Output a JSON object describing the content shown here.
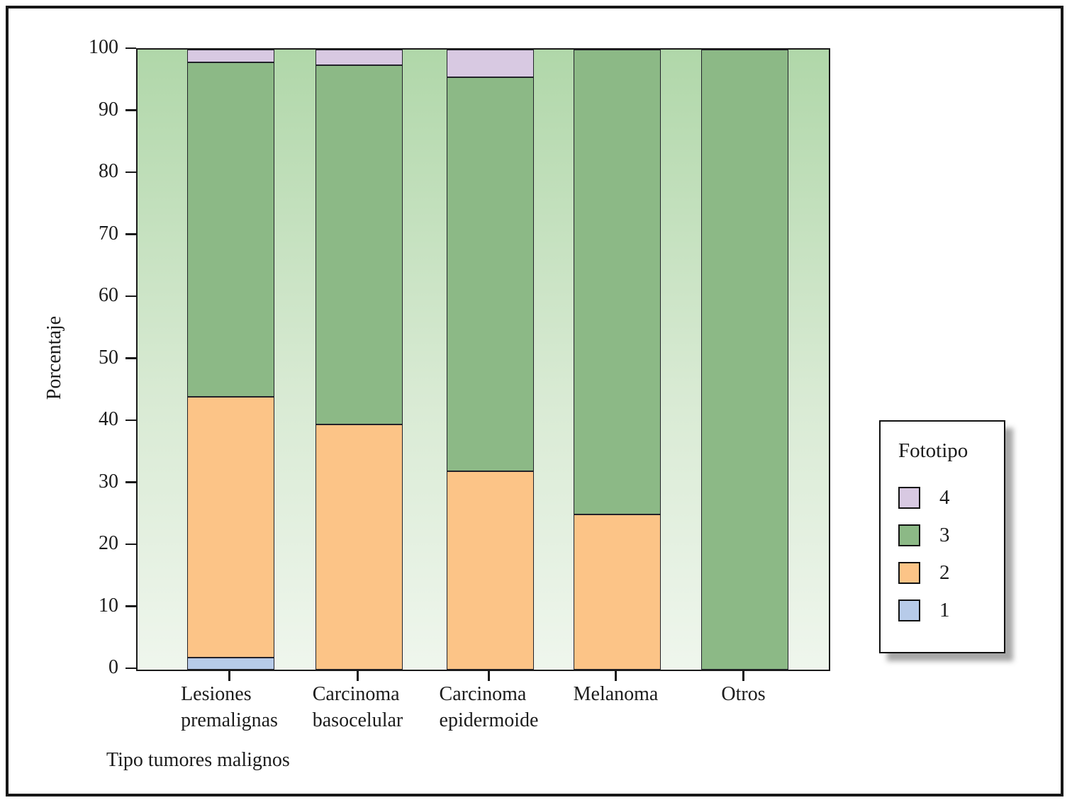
{
  "chart_data": {
    "type": "bar",
    "variant": "stacked-percent",
    "title": "",
    "xlabel": "Tipo tumores malignos",
    "ylabel": "Porcentaje",
    "ylim": [
      0,
      100
    ],
    "yticks": [
      0,
      10,
      20,
      30,
      40,
      50,
      60,
      70,
      80,
      90,
      100
    ],
    "grid": "off",
    "categories": [
      "Lesiones premalignas",
      "Carcinoma basocelular",
      "Carcinoma epidermoide",
      "Melanoma",
      "Otros"
    ],
    "category_label_lines": [
      [
        "Lesiones",
        "premalignas"
      ],
      [
        "Carcinoma",
        "basocelular"
      ],
      [
        "Carcinoma",
        "epidermoide"
      ],
      [
        "Melanoma"
      ],
      [
        "Otros"
      ]
    ],
    "series": [
      {
        "name": "1",
        "color": "#b7cbe9",
        "values": [
          2,
          0,
          0,
          0,
          0
        ]
      },
      {
        "name": "2",
        "color": "#fcc487",
        "values": [
          42,
          39.5,
          32,
          25,
          0
        ]
      },
      {
        "name": "3",
        "color": "#8cb986",
        "values": [
          54,
          58,
          63.5,
          75,
          100
        ]
      },
      {
        "name": "4",
        "color": "#d8c9e2",
        "values": [
          2,
          2.5,
          4.5,
          0,
          0
        ]
      }
    ],
    "legend": {
      "title": "Fototipo",
      "position": "right",
      "items": [
        {
          "label": "4",
          "color": "#d8c9e2"
        },
        {
          "label": "3",
          "color": "#8cb986"
        },
        {
          "label": "2",
          "color": "#fcc487"
        },
        {
          "label": "1",
          "color": "#b7cbe9"
        }
      ]
    },
    "colors": {
      "plot_bg_top": "#b0d7a9",
      "plot_bg_bottom": "#eff6ed",
      "axis_line": "#1a1a1a",
      "segment_outline": "#22222a",
      "figure_border": "#181818",
      "text": "#1c1c1c"
    }
  }
}
